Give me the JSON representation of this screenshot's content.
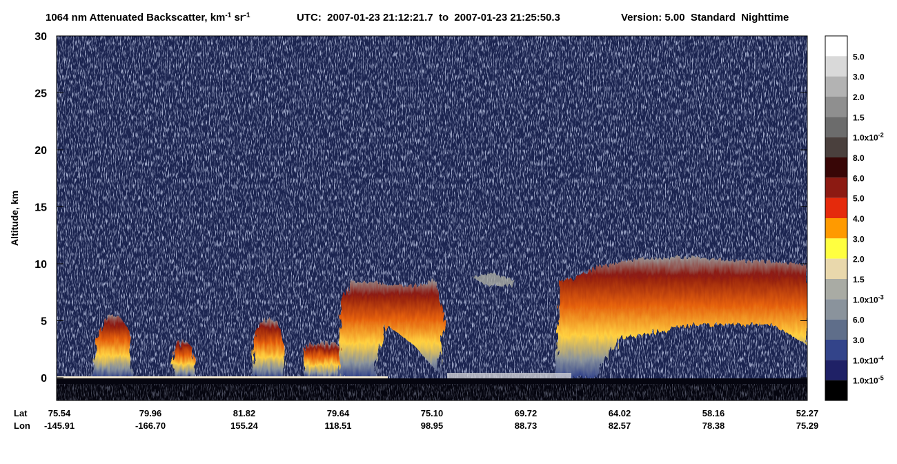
{
  "chart_data": {
    "type": "heatmap",
    "title": {
      "text": "1064 nm Attenuated Backscatter, km",
      "sup1": "-1",
      "unit2": " sr",
      "sup2": "-1"
    },
    "utc": "UTC:  2007-01-23 21:12:21.7  to  2007-01-23 21:25:50.3",
    "version": "Version: 5.00  Standard  Nighttime",
    "y_label": "Altitude, km",
    "ylim": [
      -2,
      30
    ],
    "yticks": [
      0,
      5,
      10,
      15,
      20,
      25,
      30
    ],
    "x_rows": [
      {
        "name": "Lat",
        "labels": [
          "75.54",
          "79.96",
          "81.82",
          "79.64",
          "75.10",
          "69.72",
          "64.02",
          "58.16",
          "52.27"
        ]
      },
      {
        "name": "Lon",
        "labels": [
          "-145.91",
          "-166.70",
          "155.24",
          "118.51",
          "98.95",
          "88.73",
          "82.57",
          "78.38",
          "75.29"
        ]
      }
    ],
    "colorbar": {
      "colors": [
        "#ffffff",
        "#d9d9d9",
        "#b3b3b3",
        "#8f8f8f",
        "#6c6c6c",
        "#4a403d",
        "#380606",
        "#8c1a12",
        "#e52a0c",
        "#ff9a00",
        "#ffff40",
        "#e9d8ac",
        "#a9aba4",
        "#8a939c",
        "#5f6e8a",
        "#33448a",
        "#1f2166",
        "#000000"
      ],
      "labels": [
        {
          "text": "5.0"
        },
        {
          "text": "3.0"
        },
        {
          "text": "2.0"
        },
        {
          "text": "1.5"
        },
        {
          "text": "1.0x10",
          "sup": "-2"
        },
        {
          "text": "8.0"
        },
        {
          "text": "6.0"
        },
        {
          "text": "5.0"
        },
        {
          "text": "4.0"
        },
        {
          "text": "3.0"
        },
        {
          "text": "2.0"
        },
        {
          "text": "1.5"
        },
        {
          "text": "1.0x10",
          "sup": "-3"
        },
        {
          "text": "6.0"
        },
        {
          "text": "3.0"
        },
        {
          "text": "1.0x10",
          "sup": "-4"
        },
        {
          "text": "1.0x10",
          "sup": "-5"
        }
      ]
    }
  }
}
